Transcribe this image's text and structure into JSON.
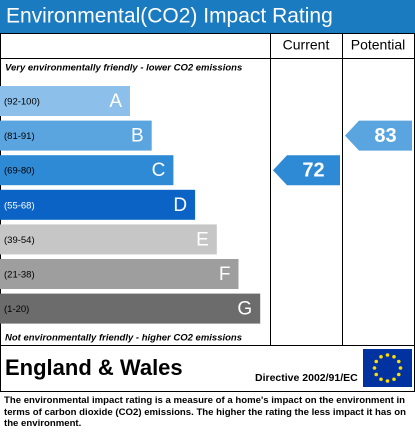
{
  "chart_data": {
    "type": "rating",
    "title": "Environmental(CO2) Impact Rating",
    "columns": [
      "Current",
      "Potential"
    ],
    "top_note": "Very environmentally friendly - lower CO2 emissions",
    "bottom_note": "Not environmentally friendly - higher CO2 emissions",
    "bands": [
      {
        "range": "(92-100)",
        "letter": "A",
        "color": "#8cc0ea"
      },
      {
        "range": "(81-91)",
        "letter": "B",
        "color": "#5aa5e0"
      },
      {
        "range": "(69-80)",
        "letter": "C",
        "color": "#2f8ad6"
      },
      {
        "range": "(55-68)",
        "letter": "D",
        "color": "#0b63c6"
      },
      {
        "range": "(39-54)",
        "letter": "E",
        "color": "#c6c6c6"
      },
      {
        "range": "(21-38)",
        "letter": "F",
        "color": "#9e9e9e"
      },
      {
        "range": "(1-20)",
        "letter": "G",
        "color": "#6c6c6c"
      }
    ],
    "current": 72,
    "potential": 83,
    "footer": {
      "region": "England & Wales",
      "directive": "Directive 2002/91/EC"
    },
    "description": "The environmental impact rating is a measure of a home's impact on the environment in terms of carbon dioxide (CO2) emissions. The higher the rating the less impact it has on the environment."
  }
}
